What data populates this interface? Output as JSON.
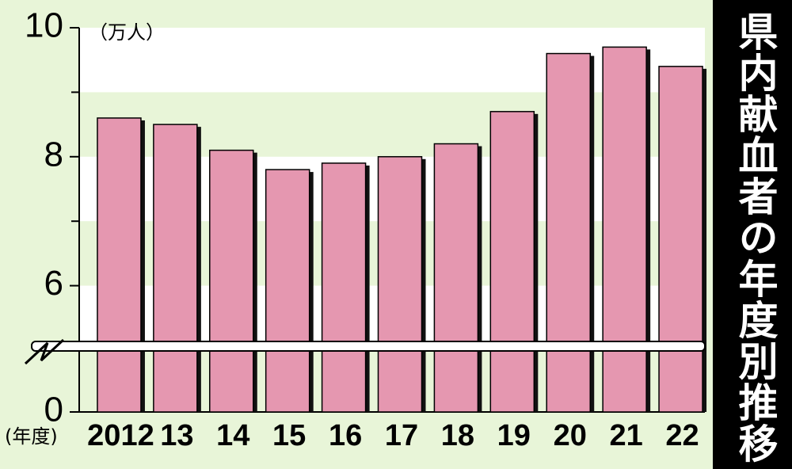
{
  "chart_data": {
    "type": "bar",
    "title": "県内献血者の年度別推移",
    "unit_label": "（万人）",
    "x_label": "(年度)",
    "categories": [
      "2012",
      "13",
      "14",
      "15",
      "16",
      "17",
      "18",
      "19",
      "20",
      "21",
      "22"
    ],
    "values": [
      8.6,
      8.5,
      8.1,
      7.8,
      7.9,
      8.0,
      8.2,
      8.7,
      9.6,
      9.7,
      9.4
    ],
    "color": "#e597b0",
    "ylim": [
      0,
      10
    ],
    "axis_break": 5,
    "yticks": [
      0,
      6,
      8,
      10
    ],
    "minor_yticks": [
      7,
      9
    ]
  }
}
